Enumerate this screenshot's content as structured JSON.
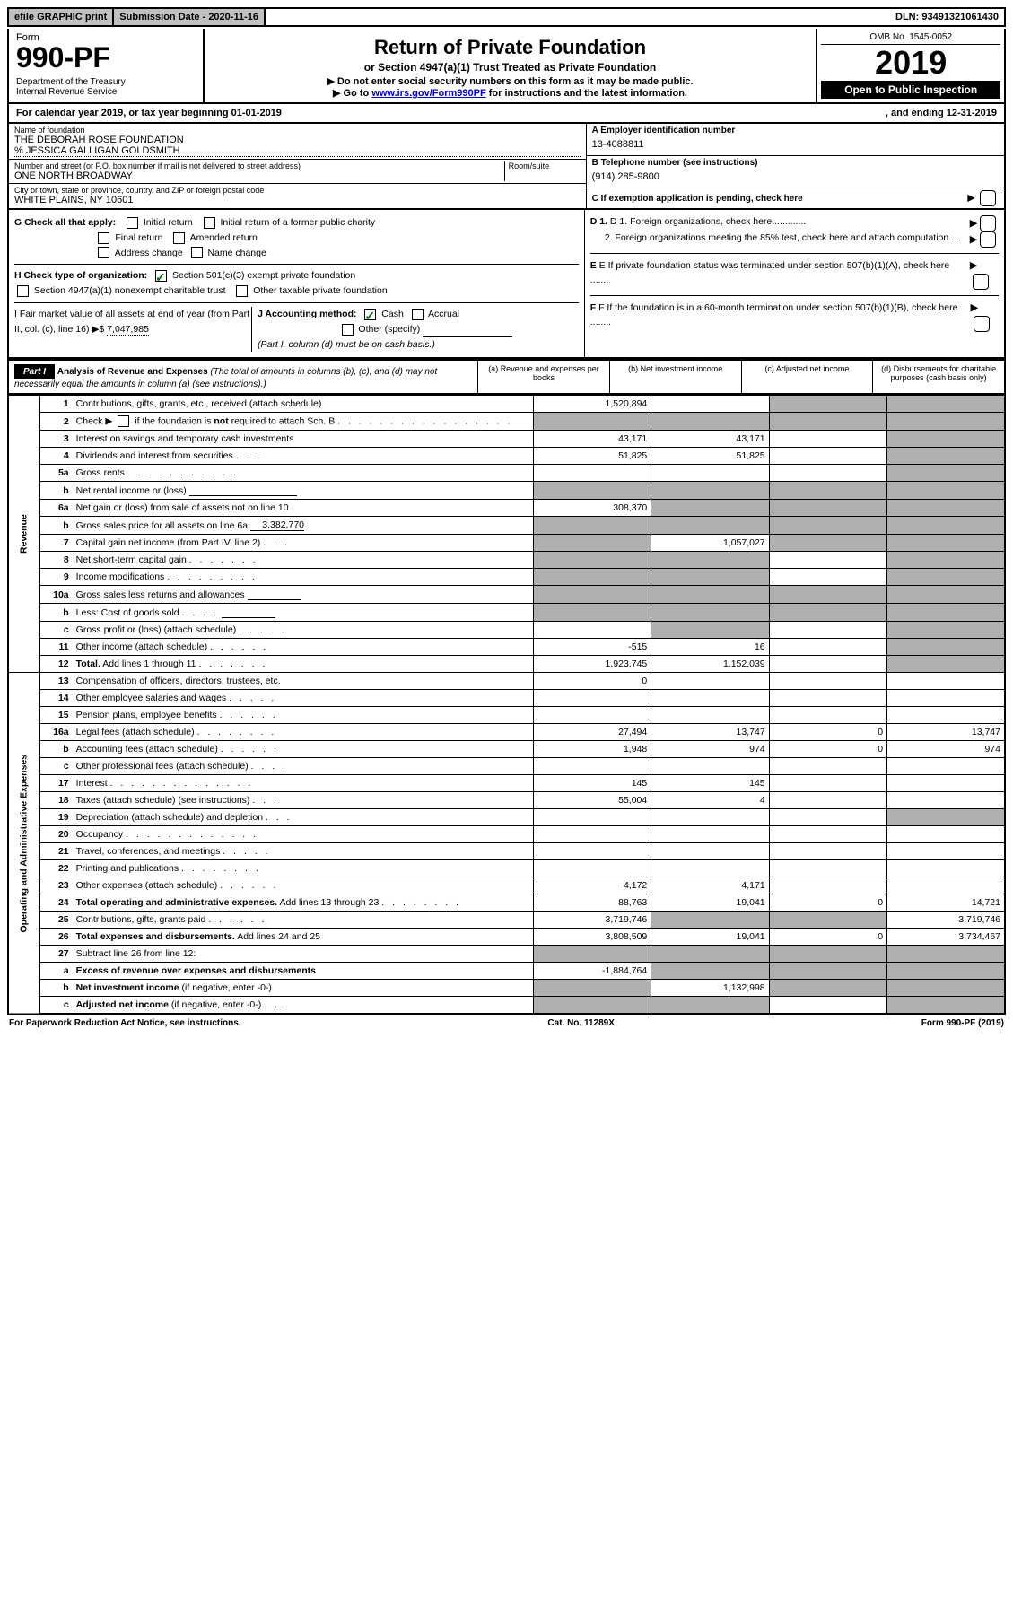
{
  "topBar": {
    "efile": "efile GRAPHIC print",
    "subDate": "Submission Date - 2020-11-16",
    "dln": "DLN: 93491321061430"
  },
  "formNum": {
    "form": "Form",
    "num": "990-PF",
    "dept": "Department of the Treasury",
    "irs": "Internal Revenue Service"
  },
  "title": {
    "main": "Return of Private Foundation",
    "sub": "or Section 4947(a)(1) Trust Treated as Private Foundation",
    "l1": "▶ Do not enter social security numbers on this form as it may be made public.",
    "l2a": "▶ Go to ",
    "l2link": "www.irs.gov/Form990PF",
    "l2b": " for instructions and the latest information."
  },
  "yearBlock": {
    "omb": "OMB No. 1545-0052",
    "year": "2019",
    "open": "Open to Public Inspection"
  },
  "calYear": {
    "a": "For calendar year 2019, or tax year beginning 01-01-2019",
    "b": ", and ending 12-31-2019"
  },
  "info": {
    "nameLbl": "Name of foundation",
    "name": "THE DEBORAH ROSE FOUNDATION",
    "co": "% JESSICA GALLIGAN GOLDSMITH",
    "addrLbl": "Number and street (or P.O. box number if mail is not delivered to street address)",
    "addr": "ONE NORTH BROADWAY",
    "roomLbl": "Room/suite",
    "cityLbl": "City or town, state or province, country, and ZIP or foreign postal code",
    "city": "WHITE PLAINS, NY  10601",
    "einLbl": "A Employer identification number",
    "ein": "13-4088811",
    "telLbl": "B Telephone number (see instructions)",
    "tel": "(914) 285-9800",
    "cLbl": "C If exemption application is pending, check here"
  },
  "checks": {
    "gLbl": "G Check all that apply:",
    "g1": "Initial return",
    "g2": "Initial return of a former public charity",
    "g3": "Final return",
    "g4": "Amended return",
    "g5": "Address change",
    "g6": "Name change",
    "hLbl": "H Check type of organization:",
    "h1": "Section 501(c)(3) exempt private foundation",
    "h2": "Section 4947(a)(1) nonexempt charitable trust",
    "h3": "Other taxable private foundation",
    "iLbl": "I Fair market value of all assets at end of year (from Part II, col. (c), line 16) ▶$",
    "iVal": "7,047,985",
    "jLbl": "J Accounting method:",
    "j1": "Cash",
    "j2": "Accrual",
    "j3": "Other (specify)",
    "jNote": "(Part I, column (d) must be on cash basis.)",
    "d1": "D 1. Foreign organizations, check here.............",
    "d2": "2. Foreign organizations meeting the 85% test, check here and attach computation ...",
    "eLbl": "E  If private foundation status was terminated under section 507(b)(1)(A), check here .......",
    "fLbl": "F  If the foundation is in a 60-month termination under section 507(b)(1)(B), check here ........"
  },
  "partI": {
    "hdr": "Part I",
    "title": "Analysis of Revenue and Expenses",
    "note": "(The total of amounts in columns (b), (c), and (d) may not necessarily equal the amounts in column (a) (see instructions).)",
    "colA": "(a)    Revenue and expenses per books",
    "colB": "(b)   Net investment income",
    "colC": "(c)   Adjusted net income",
    "colD": "(d)   Disbursements for charitable purposes (cash basis only)",
    "revLabel": "Revenue",
    "expLabel": "Operating and Administrative Expenses"
  },
  "rows": [
    {
      "n": "1",
      "desc": "Contributions, gifts, grants, etc., received (attach schedule)",
      "a": "1,520,894",
      "b": "",
      "c": "g",
      "d": "g"
    },
    {
      "n": "2",
      "desc_html": "Check ▶ <span class='cb'></span> if the foundation is <b>not</b> required to attach Sch. B <span class='dotted'>. . . . . . . . . . . . . . . . .</span>",
      "a": "g",
      "b": "g",
      "c": "g",
      "d": "g"
    },
    {
      "n": "3",
      "desc": "Interest on savings and temporary cash investments",
      "a": "43,171",
      "b": "43,171",
      "c": "",
      "d": "g"
    },
    {
      "n": "4",
      "desc_html": "Dividends and interest from securities <span class='dotted'>. . .</span>",
      "a": "51,825",
      "b": "51,825",
      "c": "",
      "d": "g"
    },
    {
      "n": "5a",
      "desc_html": "Gross rents <span class='dotted'>. . . . . . . . . . .</span>",
      "a": "",
      "b": "",
      "c": "",
      "d": "g"
    },
    {
      "n": "b",
      "desc_html": "Net rental income or (loss) <span class='small-input' style='min-width:120px'></span>",
      "a": "g",
      "b": "g",
      "c": "g",
      "d": "g"
    },
    {
      "n": "6a",
      "desc": "Net gain or (loss) from sale of assets not on line 10",
      "a": "308,370",
      "b": "g",
      "c": "g",
      "d": "g"
    },
    {
      "n": "b",
      "desc_html": "Gross sales price for all assets on line 6a <span class='small-input' style='text-align:right'>3,382,770</span>",
      "a": "g",
      "b": "g",
      "c": "g",
      "d": "g"
    },
    {
      "n": "7",
      "desc_html": "Capital gain net income (from Part IV, line 2) <span class='dotted'>. . .</span>",
      "a": "g",
      "b": "1,057,027",
      "c": "g",
      "d": "g"
    },
    {
      "n": "8",
      "desc_html": "Net short-term capital gain <span class='dotted'>. . . . . . .</span>",
      "a": "g",
      "b": "g",
      "c": "",
      "d": "g"
    },
    {
      "n": "9",
      "desc_html": "Income modifications <span class='dotted'>. . . . . . . . .</span>",
      "a": "g",
      "b": "g",
      "c": "",
      "d": "g"
    },
    {
      "n": "10a",
      "desc_html": "Gross sales less returns and allowances <span class='small-input'></span>",
      "a": "g",
      "b": "g",
      "c": "g",
      "d": "g"
    },
    {
      "n": "b",
      "desc_html": "Less: Cost of goods sold <span class='dotted'>. . . .</span> <span class='small-input'></span>",
      "a": "g",
      "b": "g",
      "c": "g",
      "d": "g"
    },
    {
      "n": "c",
      "desc_html": "Gross profit or (loss) (attach schedule) <span class='dotted'>. . . . .</span>",
      "a": "",
      "b": "g",
      "c": "",
      "d": "g"
    },
    {
      "n": "11",
      "desc_html": "Other income (attach schedule) <span class='dotted'>. . . . . .</span>",
      "a": "-515",
      "b": "16",
      "c": "",
      "d": "g"
    },
    {
      "n": "12",
      "desc_html": "<b>Total.</b> Add lines 1 through 11 <span class='dotted'>. . . . . . .</span>",
      "a": "1,923,745",
      "b": "1,152,039",
      "c": "",
      "d": "g"
    }
  ],
  "exprows": [
    {
      "n": "13",
      "desc": "Compensation of officers, directors, trustees, etc.",
      "a": "0",
      "b": "",
      "c": "",
      "d": ""
    },
    {
      "n": "14",
      "desc_html": "Other employee salaries and wages <span class='dotted'>. . . . .</span>",
      "a": "",
      "b": "",
      "c": "",
      "d": ""
    },
    {
      "n": "15",
      "desc_html": "Pension plans, employee benefits <span class='dotted'>. . . . . .</span>",
      "a": "",
      "b": "",
      "c": "",
      "d": ""
    },
    {
      "n": "16a",
      "desc_html": "Legal fees (attach schedule) <span class='dotted'>. . . . . . . .</span>",
      "a": "27,494",
      "b": "13,747",
      "c": "0",
      "d": "13,747"
    },
    {
      "n": "b",
      "desc_html": "Accounting fees (attach schedule) <span class='dotted'>. . . . . .</span>",
      "a": "1,948",
      "b": "974",
      "c": "0",
      "d": "974"
    },
    {
      "n": "c",
      "desc_html": "Other professional fees (attach schedule) <span class='dotted'>. . . .</span>",
      "a": "",
      "b": "",
      "c": "",
      "d": ""
    },
    {
      "n": "17",
      "desc_html": "Interest <span class='dotted'>. . . . . . . . . . . . . .</span>",
      "a": "145",
      "b": "145",
      "c": "",
      "d": ""
    },
    {
      "n": "18",
      "desc_html": "Taxes (attach schedule) (see instructions) <span class='dotted'>. . .</span>",
      "a": "55,004",
      "b": "4",
      "c": "",
      "d": ""
    },
    {
      "n": "19",
      "desc_html": "Depreciation (attach schedule) and depletion <span class='dotted'>. . .</span>",
      "a": "",
      "b": "",
      "c": "",
      "d": "g"
    },
    {
      "n": "20",
      "desc_html": "Occupancy <span class='dotted'>. . . . . . . . . . . . .</span>",
      "a": "",
      "b": "",
      "c": "",
      "d": ""
    },
    {
      "n": "21",
      "desc_html": "Travel, conferences, and meetings <span class='dotted'>. . . . .</span>",
      "a": "",
      "b": "",
      "c": "",
      "d": ""
    },
    {
      "n": "22",
      "desc_html": "Printing and publications <span class='dotted'>. . . . . . . .</span>",
      "a": "",
      "b": "",
      "c": "",
      "d": ""
    },
    {
      "n": "23",
      "desc_html": "Other expenses (attach schedule) <span class='dotted'>. . . . . .</span>",
      "a": "4,172",
      "b": "4,171",
      "c": "",
      "d": ""
    },
    {
      "n": "24",
      "desc_html": "<b>Total operating and administrative expenses.</b> Add lines 13 through 23 <span class='dotted'>. . . . . . . .</span>",
      "a": "88,763",
      "b": "19,041",
      "c": "0",
      "d": "14,721"
    },
    {
      "n": "25",
      "desc_html": "Contributions, gifts, grants paid <span class='dotted'>. . . . . .</span>",
      "a": "3,719,746",
      "b": "g",
      "c": "g",
      "d": "3,719,746"
    },
    {
      "n": "26",
      "desc_html": "<b>Total expenses and disbursements.</b> Add lines 24 and 25",
      "a": "3,808,509",
      "b": "19,041",
      "c": "0",
      "d": "3,734,467"
    }
  ],
  "rows27": [
    {
      "n": "27",
      "desc": "Subtract line 26 from line 12:",
      "a": "g",
      "b": "g",
      "c": "g",
      "d": "g"
    },
    {
      "n": "a",
      "desc_html": "<b>Excess of revenue over expenses and disbursements</b>",
      "a": "-1,884,764",
      "b": "g",
      "c": "g",
      "d": "g"
    },
    {
      "n": "b",
      "desc_html": "<b>Net investment income</b> (if negative, enter -0-)",
      "a": "g",
      "b": "1,132,998",
      "c": "g",
      "d": "g"
    },
    {
      "n": "c",
      "desc_html": "<b>Adjusted net income</b> (if negative, enter -0-) <span class='dotted'>. . .</span>",
      "a": "g",
      "b": "g",
      "c": "",
      "d": "g"
    }
  ],
  "footer": {
    "a": "For Paperwork Reduction Act Notice, see instructions.",
    "b": "Cat. No. 11289X",
    "c": "Form 990-PF (2019)"
  }
}
